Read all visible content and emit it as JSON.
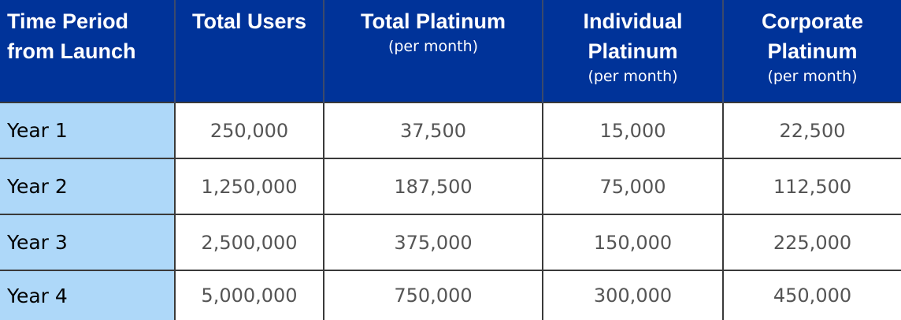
{
  "columns": [
    {
      "label": "Time Period from Launch",
      "sub": ""
    },
    {
      "label": "Total Users",
      "sub": ""
    },
    {
      "label": "Total Platinum",
      "sub": "(per month)"
    },
    {
      "label": "Individual Platinum",
      "sub": "(per month)"
    },
    {
      "label": "Corporate Platinum",
      "sub": "(per month)"
    }
  ],
  "rows": [
    {
      "period": "Year 1",
      "total_users": "250,000",
      "total_platinum": "37,500",
      "individual_platinum": "15,000",
      "corporate_platinum": "22,500"
    },
    {
      "period": "Year 2",
      "total_users": "1,250,000",
      "total_platinum": "187,500",
      "individual_platinum": "75,000",
      "corporate_platinum": "112,500"
    },
    {
      "period": "Year 3",
      "total_users": "2,500,000",
      "total_platinum": "375,000",
      "individual_platinum": "150,000",
      "corporate_platinum": "225,000"
    },
    {
      "period": "Year 4",
      "total_users": "5,000,000",
      "total_platinum": "750,000",
      "individual_platinum": "300,000",
      "corporate_platinum": "450,000"
    }
  ],
  "colors": {
    "header_bg": "#003399",
    "header_text": "#ffffff",
    "period_bg": "#aed8f9",
    "cell_text": "#555555",
    "grid_line": "#3a3a3a"
  }
}
